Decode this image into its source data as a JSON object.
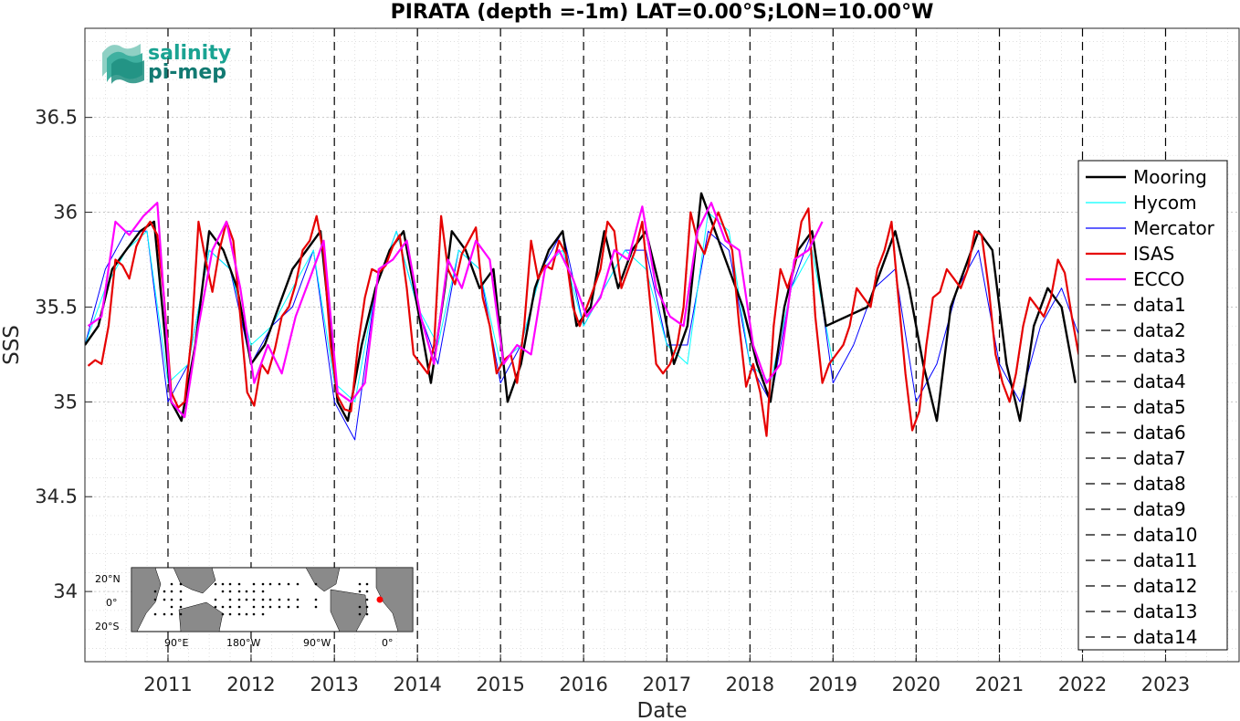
{
  "logo": {
    "line1": "salinity",
    "line2": "pi-mep"
  },
  "inset_map": {
    "lat_labels": [
      "20°N",
      "0°",
      "20°S"
    ],
    "lon_labels": [
      "90°E",
      "180°W",
      "90°W",
      "0°"
    ],
    "marker_color": "#ff0000"
  },
  "chart_data": {
    "type": "line",
    "title": "PIRATA (depth =-1m) LAT=0.00°S;LON=10.00°W",
    "xlabel": "Date",
    "ylabel": "SSS",
    "xlim": [
      "2010-01-01",
      "2023-11-20"
    ],
    "ylim": [
      33.63,
      36.97
    ],
    "grid": true,
    "legend_position": "right",
    "x_tick_labels": [
      "2011",
      "2012",
      "2013",
      "2014",
      "2015",
      "2016",
      "2017",
      "2018",
      "2019",
      "2020",
      "2021",
      "2022",
      "2023"
    ],
    "y_tick_labels": [
      "34",
      "34.5",
      "35",
      "35.5",
      "36",
      "36.5"
    ],
    "y_ticks": [
      34,
      34.5,
      35,
      35.5,
      36,
      36.5
    ],
    "year_lines": [
      "2011-01-01",
      "2012-01-01",
      "2013-01-01",
      "2014-01-01",
      "2015-01-01",
      "2016-01-01",
      "2017-01-01",
      "2018-01-01",
      "2019-01-01",
      "2020-01-01",
      "2021-01-01",
      "2022-01-01",
      "2023-01-01"
    ],
    "series": [
      {
        "name": "Mooring",
        "color": "#000000",
        "style": "solid",
        "width": 2.4,
        "x": [
          "2010-01-01",
          "2010-03-01",
          "2010-05-01",
          "2010-07-01",
          "2010-09-01",
          "2010-11-01",
          "2011-01-15",
          "2011-03-01",
          "2011-05-01",
          "2011-07-01",
          "2011-09-01",
          "2011-11-01",
          "2012-01-01",
          "2012-03-01",
          "2012-05-01",
          "2012-07-01",
          "2012-09-01",
          "2012-11-01",
          "2013-01-15",
          "2013-03-01",
          "2013-05-01",
          "2013-07-01",
          "2013-09-01",
          "2013-11-01",
          "2014-01-01",
          "2014-03-01",
          "2014-05-01",
          "2014-06-01",
          "2014-08-01",
          "2014-10-01",
          "2014-12-01",
          "2015-02-01",
          "2015-04-01",
          "2015-06-01",
          "2015-08-01",
          "2015-10-01",
          "2015-12-01",
          "2016-02-01",
          "2016-04-01",
          "2016-06-01",
          "2016-08-01",
          "2016-10-01",
          "2016-12-01",
          "2017-02-01",
          "2017-04-01",
          "2017-06-01",
          "2017-08-01",
          "2017-10-01",
          "2017-12-01",
          "2018-02-01",
          "2018-04-01",
          "2018-06-01",
          "2018-08-01",
          "2018-10-01",
          "2018-12-01",
          "2019-06-01",
          "2019-08-01",
          "2019-10-01",
          "2019-12-01",
          "2020-02-01",
          "2020-04-01",
          "2020-06-01",
          "2020-08-01",
          "2020-10-01",
          "2020-12-01",
          "2021-02-01",
          "2021-04-01",
          "2021-06-01",
          "2021-08-01",
          "2021-10-01",
          "2021-12-01"
        ],
        "y": [
          35.3,
          35.4,
          35.7,
          35.8,
          35.9,
          35.95,
          35.0,
          34.9,
          35.3,
          35.9,
          35.8,
          35.6,
          35.2,
          35.3,
          35.5,
          35.7,
          35.8,
          35.9,
          35.0,
          34.9,
          35.3,
          35.6,
          35.8,
          35.9,
          35.5,
          35.1,
          35.6,
          35.9,
          35.8,
          35.6,
          35.7,
          35.0,
          35.2,
          35.6,
          35.8,
          35.9,
          35.4,
          35.5,
          35.9,
          35.6,
          35.8,
          35.9,
          35.6,
          35.2,
          35.4,
          36.1,
          35.9,
          35.7,
          35.5,
          35.2,
          35.0,
          35.5,
          35.8,
          35.9,
          35.4,
          35.5,
          35.7,
          35.9,
          35.6,
          35.2,
          34.9,
          35.5,
          35.7,
          35.9,
          35.8,
          35.2,
          34.9,
          35.4,
          35.6,
          35.5,
          35.1
        ]
      },
      {
        "name": "Hycom",
        "color": "#00ffff",
        "style": "solid",
        "width": 1,
        "x": [
          "2010-01-01",
          "2010-04-01",
          "2010-07-01",
          "2010-10-01",
          "2011-01-01",
          "2011-04-01",
          "2011-07-01",
          "2011-10-01",
          "2012-01-01",
          "2012-04-01",
          "2012-07-01",
          "2012-10-01",
          "2013-01-01",
          "2013-04-01",
          "2013-07-01",
          "2013-10-01",
          "2014-01-01",
          "2014-04-01",
          "2014-07-01",
          "2014-10-01",
          "2015-01-01",
          "2015-04-01",
          "2015-07-01",
          "2015-10-01",
          "2016-01-01",
          "2016-04-01",
          "2016-07-01",
          "2016-10-01",
          "2017-01-01",
          "2017-04-01",
          "2017-07-01",
          "2017-10-01",
          "2018-01-01",
          "2018-04-01",
          "2018-07-01",
          "2018-10-01",
          "2019-01-01"
        ],
        "y": [
          35.3,
          35.6,
          35.8,
          35.9,
          35.1,
          35.2,
          35.8,
          35.7,
          35.3,
          35.4,
          35.6,
          35.8,
          35.1,
          35.0,
          35.6,
          35.9,
          35.5,
          35.3,
          35.8,
          35.7,
          35.2,
          35.3,
          35.7,
          35.8,
          35.4,
          35.6,
          35.8,
          35.7,
          35.3,
          35.2,
          36.0,
          35.9,
          35.2,
          35.1,
          35.6,
          35.8,
          35.2
        ]
      },
      {
        "name": "Mercator",
        "color": "#0000ff",
        "style": "solid",
        "width": 1,
        "x": [
          "2010-01-01",
          "2010-04-01",
          "2010-07-01",
          "2010-10-01",
          "2011-01-01",
          "2011-04-01",
          "2011-07-01",
          "2011-10-01",
          "2012-01-01",
          "2012-04-01",
          "2012-07-01",
          "2012-10-01",
          "2013-01-01",
          "2013-04-01",
          "2013-07-01",
          "2013-10-01",
          "2014-01-01",
          "2014-04-01",
          "2014-07-01",
          "2014-10-01",
          "2015-01-01",
          "2015-04-01",
          "2015-07-01",
          "2015-10-01",
          "2016-01-01",
          "2016-04-01",
          "2016-07-01",
          "2016-10-01",
          "2017-01-01",
          "2017-04-01",
          "2017-07-01",
          "2017-10-01",
          "2018-01-01",
          "2018-04-01",
          "2018-07-01",
          "2018-10-01",
          "2019-01-01",
          "2019-04-01",
          "2019-07-01",
          "2019-10-01",
          "2020-01-01",
          "2020-04-01",
          "2020-07-01",
          "2020-10-01",
          "2021-01-01",
          "2021-04-01",
          "2021-07-01",
          "2021-10-01",
          "2022-01-01"
        ],
        "y": [
          35.3,
          35.7,
          35.9,
          35.9,
          35.0,
          35.2,
          35.8,
          35.7,
          35.2,
          35.4,
          35.5,
          35.8,
          35.0,
          34.8,
          35.6,
          35.9,
          35.5,
          35.2,
          35.8,
          35.7,
          35.1,
          35.3,
          35.7,
          35.9,
          35.4,
          35.6,
          35.8,
          35.8,
          35.3,
          35.3,
          35.9,
          35.8,
          35.2,
          35.0,
          35.6,
          35.9,
          35.1,
          35.3,
          35.6,
          35.7,
          35.0,
          35.2,
          35.6,
          35.8,
          35.2,
          35.0,
          35.4,
          35.6,
          35.3
        ]
      },
      {
        "name": "ISAS",
        "color": "#e60000",
        "style": "solid",
        "width": 2.2,
        "x": [
          "2010-01-15",
          "2010-02-15",
          "2010-03-15",
          "2010-04-15",
          "2010-05-15",
          "2010-06-15",
          "2010-07-15",
          "2010-08-15",
          "2010-09-15",
          "2010-10-15",
          "2010-11-15",
          "2010-12-15",
          "2011-01-15",
          "2011-02-15",
          "2011-03-15",
          "2011-04-15",
          "2011-05-15",
          "2011-06-15",
          "2011-07-15",
          "2011-08-15",
          "2011-09-15",
          "2011-10-15",
          "2011-11-15",
          "2011-12-15",
          "2012-01-15",
          "2012-02-15",
          "2012-03-15",
          "2012-04-15",
          "2012-05-15",
          "2012-06-15",
          "2012-07-15",
          "2012-08-15",
          "2012-09-15",
          "2012-10-15",
          "2012-11-15",
          "2012-12-15",
          "2013-01-15",
          "2013-02-15",
          "2013-03-15",
          "2013-04-15",
          "2013-05-15",
          "2013-06-15",
          "2013-07-15",
          "2013-08-15",
          "2013-09-15",
          "2013-10-15",
          "2013-11-15",
          "2013-12-15",
          "2014-01-15",
          "2014-02-15",
          "2014-03-15",
          "2014-04-15",
          "2014-05-15",
          "2014-06-15",
          "2014-07-15",
          "2014-08-15",
          "2014-09-15",
          "2014-10-15",
          "2014-11-15",
          "2014-12-15",
          "2015-01-15",
          "2015-02-15",
          "2015-03-15",
          "2015-04-15",
          "2015-05-15",
          "2015-06-15",
          "2015-07-15",
          "2015-08-15",
          "2015-09-15",
          "2015-10-15",
          "2015-11-15",
          "2015-12-15",
          "2016-01-15",
          "2016-02-15",
          "2016-03-15",
          "2016-04-15",
          "2016-05-15",
          "2016-06-15",
          "2016-07-15",
          "2016-08-15",
          "2016-09-15",
          "2016-10-15",
          "2016-11-15",
          "2016-12-15",
          "2017-01-15",
          "2017-02-15",
          "2017-03-15",
          "2017-04-15",
          "2017-05-15",
          "2017-06-15",
          "2017-07-15",
          "2017-08-15",
          "2017-09-15",
          "2017-10-15",
          "2017-11-15",
          "2017-12-15",
          "2018-01-15",
          "2018-02-15",
          "2018-03-15",
          "2018-04-15",
          "2018-05-15",
          "2018-06-15",
          "2018-07-15",
          "2018-08-15",
          "2018-09-15",
          "2018-10-15",
          "2018-11-15",
          "2018-12-15",
          "2019-01-15",
          "2019-02-15",
          "2019-03-15",
          "2019-04-15",
          "2019-05-15",
          "2019-06-15",
          "2019-07-15",
          "2019-08-15",
          "2019-09-15",
          "2019-10-15",
          "2019-11-15",
          "2019-12-15",
          "2020-01-15",
          "2020-02-15",
          "2020-03-15",
          "2020-04-15",
          "2020-05-15",
          "2020-06-15",
          "2020-07-15",
          "2020-08-15",
          "2020-09-15",
          "2020-10-15",
          "2020-11-15",
          "2020-12-15",
          "2021-01-15",
          "2021-02-15",
          "2021-03-15",
          "2021-04-15",
          "2021-05-15",
          "2021-06-15",
          "2021-07-15",
          "2021-08-15",
          "2021-09-15",
          "2021-10-15",
          "2021-11-15",
          "2021-12-15"
        ],
        "y": [
          35.19,
          35.22,
          35.2,
          35.4,
          35.75,
          35.72,
          35.65,
          35.82,
          35.9,
          35.95,
          35.88,
          35.55,
          35.05,
          34.97,
          35.0,
          35.35,
          35.95,
          35.75,
          35.58,
          35.8,
          35.95,
          35.85,
          35.45,
          35.05,
          34.98,
          35.2,
          35.15,
          35.28,
          35.45,
          35.5,
          35.62,
          35.8,
          35.85,
          35.98,
          35.78,
          35.3,
          35.03,
          34.96,
          34.95,
          35.3,
          35.55,
          35.7,
          35.68,
          35.72,
          35.82,
          35.88,
          35.6,
          35.25,
          35.2,
          35.15,
          35.3,
          35.98,
          35.7,
          35.62,
          35.78,
          35.85,
          35.92,
          35.55,
          35.4,
          35.15,
          35.22,
          35.25,
          35.1,
          35.4,
          35.85,
          35.65,
          35.72,
          35.7,
          35.85,
          35.78,
          35.5,
          35.4,
          35.5,
          35.6,
          35.7,
          35.95,
          35.9,
          35.6,
          35.7,
          35.8,
          35.95,
          35.58,
          35.2,
          35.15,
          35.2,
          35.3,
          35.5,
          36.0,
          35.85,
          35.78,
          35.9,
          36.0,
          35.9,
          35.8,
          35.4,
          35.08,
          35.2,
          35.05,
          34.82,
          35.4,
          35.7,
          35.6,
          35.72,
          35.95,
          36.02,
          35.45,
          35.1,
          35.2,
          35.25,
          35.3,
          35.4,
          35.6,
          35.55,
          35.5,
          35.7,
          35.8,
          35.95,
          35.55,
          35.15,
          34.85,
          34.95,
          35.3,
          35.55,
          35.58,
          35.7,
          35.65,
          35.6,
          35.7,
          35.9,
          35.88,
          35.6,
          35.25,
          35.1,
          35.0,
          35.15,
          35.4,
          35.55,
          35.5,
          35.45,
          35.55,
          35.75,
          35.68,
          35.45,
          35.25
        ]
      },
      {
        "name": "ECCO",
        "color": "#ff00ff",
        "style": "solid",
        "width": 2.2,
        "x": [
          "2010-01-15",
          "2010-03-15",
          "2010-05-15",
          "2010-07-15",
          "2010-09-15",
          "2010-11-15",
          "2011-01-15",
          "2011-03-15",
          "2011-05-15",
          "2011-07-15",
          "2011-09-15",
          "2011-11-15",
          "2012-01-15",
          "2012-03-15",
          "2012-05-15",
          "2012-07-15",
          "2012-09-15",
          "2012-11-15",
          "2013-01-15",
          "2013-03-15",
          "2013-05-15",
          "2013-07-15",
          "2013-09-15",
          "2013-11-15",
          "2014-01-15",
          "2014-03-15",
          "2014-05-15",
          "2014-07-15",
          "2014-09-15",
          "2014-11-15",
          "2015-01-15",
          "2015-03-15",
          "2015-05-15",
          "2015-07-15",
          "2015-09-15",
          "2015-11-15",
          "2016-01-15",
          "2016-03-15",
          "2016-05-15",
          "2016-07-15",
          "2016-09-15",
          "2016-11-15",
          "2017-01-15",
          "2017-03-15",
          "2017-05-15",
          "2017-07-15",
          "2017-09-15",
          "2017-11-15",
          "2018-01-15",
          "2018-03-15",
          "2018-05-15",
          "2018-07-15",
          "2018-09-15",
          "2018-11-15"
        ],
        "y": [
          35.4,
          35.45,
          35.95,
          35.88,
          35.98,
          36.05,
          35.0,
          34.92,
          35.4,
          35.8,
          35.95,
          35.6,
          35.1,
          35.3,
          35.15,
          35.45,
          35.65,
          35.85,
          35.05,
          35.0,
          35.1,
          35.7,
          35.75,
          35.85,
          35.45,
          35.2,
          35.75,
          35.6,
          35.85,
          35.75,
          35.2,
          35.3,
          35.25,
          35.7,
          35.8,
          35.65,
          35.45,
          35.55,
          35.8,
          35.75,
          36.03,
          35.6,
          35.45,
          35.4,
          35.9,
          36.05,
          35.85,
          35.8,
          35.3,
          35.1,
          35.2,
          35.75,
          35.8,
          35.95
        ]
      }
    ],
    "dashed_series_names": [
      "data1",
      "data2",
      "data3",
      "data4",
      "data5",
      "data6",
      "data7",
      "data8",
      "data9",
      "data10",
      "data11",
      "data12",
      "data13",
      "data14"
    ]
  }
}
